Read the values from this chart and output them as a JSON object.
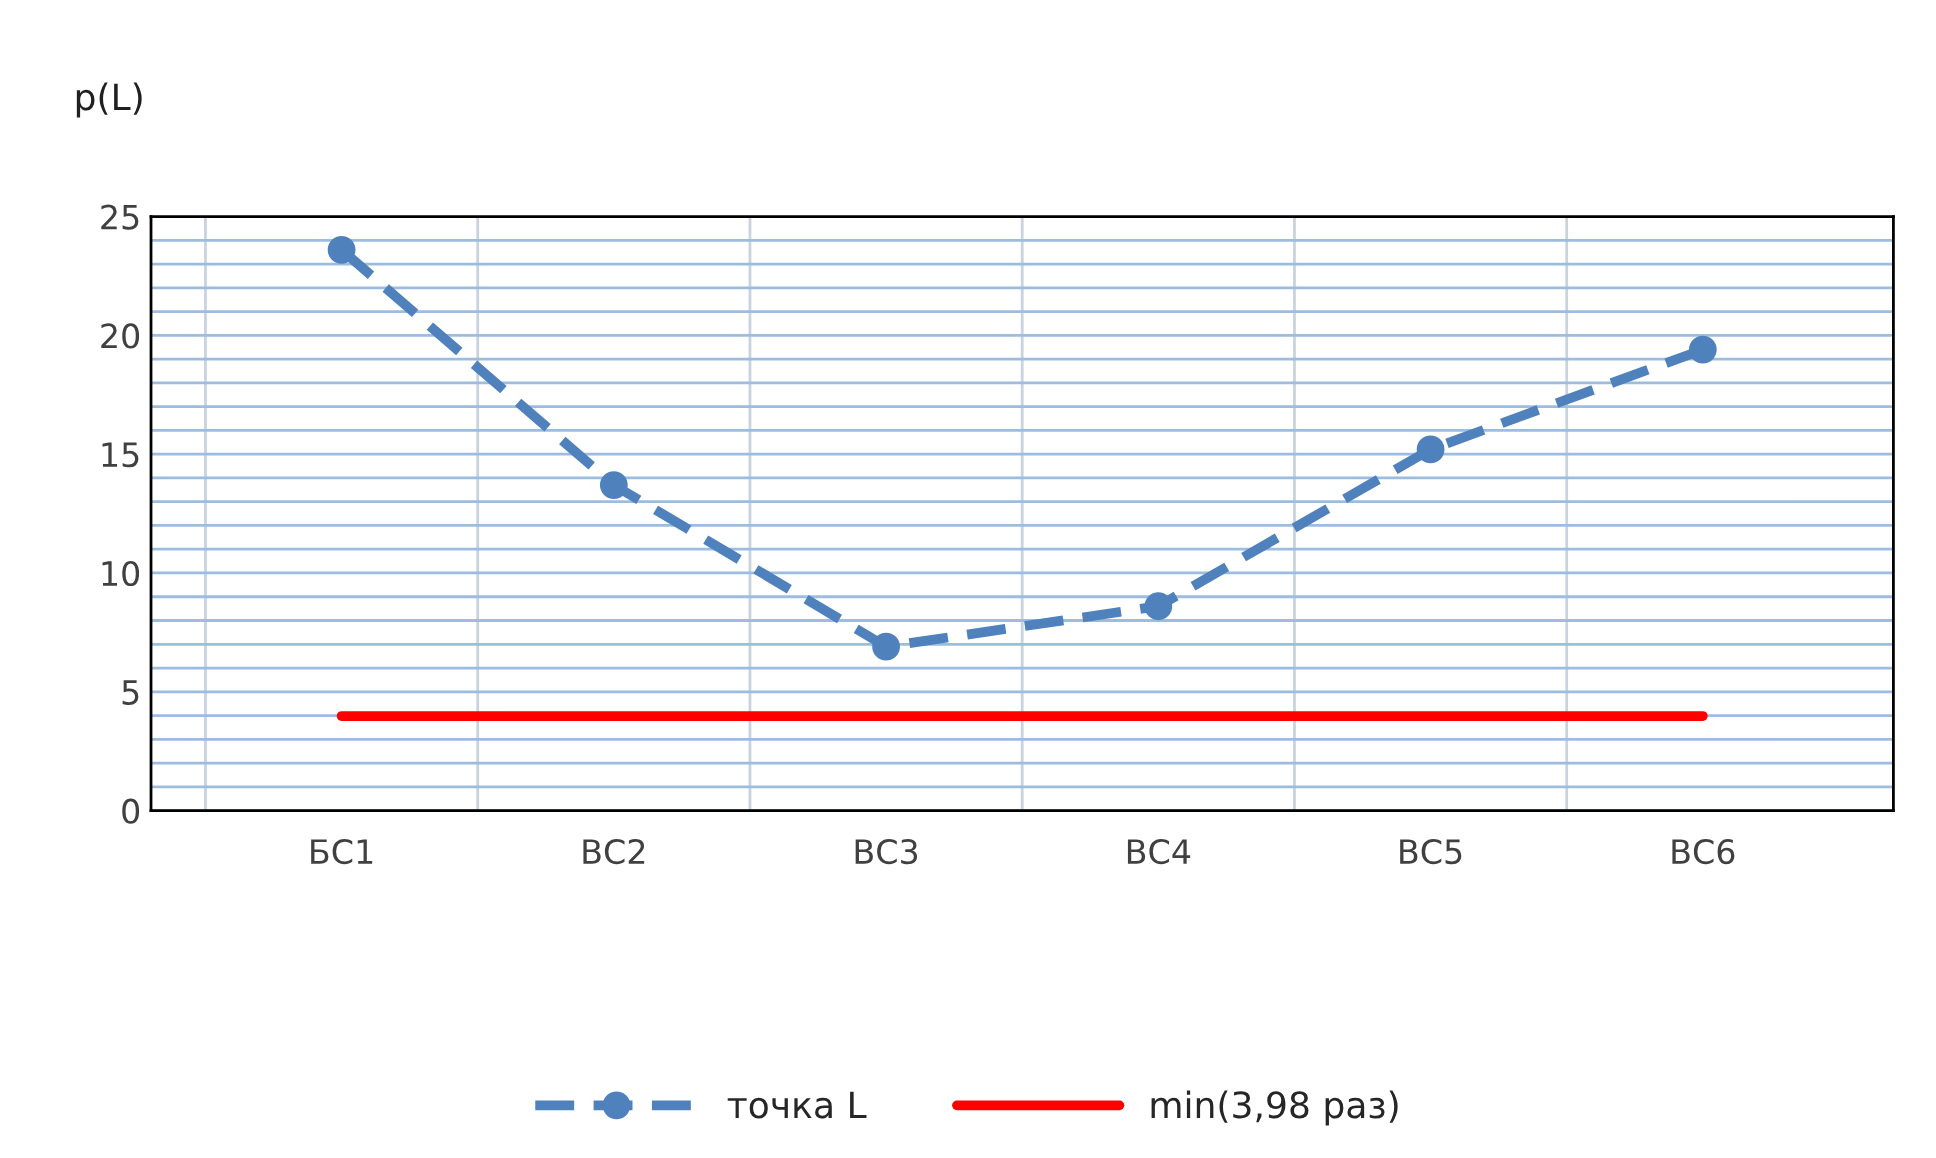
{
  "chart_data": {
    "type": "line",
    "ylabel": "p(L)",
    "categories": [
      "БС1",
      "ВС2",
      "ВС3",
      "ВС4",
      "ВС5",
      "ВС6"
    ],
    "series": [
      {
        "name": "точка L",
        "color": "#4f81bd",
        "values": [
          23.6,
          13.7,
          6.9,
          8.6,
          15.2,
          19.4
        ],
        "marker": "circle",
        "line_style": "dashed"
      },
      {
        "name": "min(3,98 раз)",
        "color": "#ff0000",
        "values": [
          3.98,
          3.98,
          3.98,
          3.98,
          3.98,
          3.98
        ],
        "marker": "none",
        "line_style": "solid"
      }
    ],
    "ylim": [
      0,
      25
    ],
    "yticks": [
      0,
      {
        "value": 1,
        "label": null
      },
      {
        "value": 2,
        "label": null
      },
      {
        "value": 3,
        "label": null
      },
      {
        "value": 4,
        "label": null
      },
      5,
      {
        "value": 6,
        "label": null
      },
      {
        "value": 7,
        "label": null
      },
      {
        "value": 8,
        "label": null
      },
      {
        "value": 9,
        "label": null
      },
      10,
      {
        "value": 11,
        "label": null
      },
      {
        "value": 12,
        "label": null
      },
      {
        "value": 13,
        "label": null
      },
      {
        "value": 14,
        "label": null
      },
      15,
      {
        "value": 16,
        "label": null
      },
      {
        "value": 17,
        "label": null
      },
      {
        "value": 18,
        "label": null
      },
      {
        "value": 19,
        "label": null
      },
      20,
      {
        "value": 21,
        "label": null
      },
      {
        "value": 22,
        "label": null
      },
      {
        "value": 23,
        "label": null
      },
      {
        "value": 24,
        "label": null
      },
      25
    ],
    "grid": true,
    "legend": "bottom"
  }
}
